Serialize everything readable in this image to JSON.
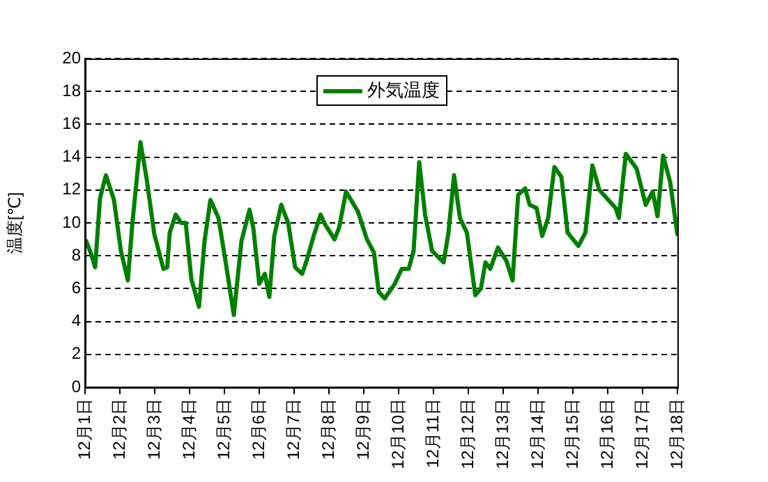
{
  "chart_data": {
    "type": "line",
    "ylabel": "温度[℃]",
    "legend": "top",
    "grid": "y",
    "marker": "none",
    "line_style": "solid",
    "xlim": [
      "--12-01",
      "--12-18"
    ],
    "ylim": [
      0,
      20
    ],
    "yticks": [
      0,
      2,
      4,
      6,
      8,
      10,
      12,
      14,
      16,
      18,
      20
    ],
    "xticks": [
      {
        "value": "--12-01",
        "label": "12月1日"
      },
      {
        "value": "--12-02",
        "label": "12月2日"
      },
      {
        "value": "--12-03",
        "label": "12月3日"
      },
      {
        "value": "--12-04",
        "label": "12月4日"
      },
      {
        "value": "--12-05",
        "label": "12月5日"
      },
      {
        "value": "--12-06",
        "label": "12月6日"
      },
      {
        "value": "--12-07",
        "label": "12月7日"
      },
      {
        "value": "--12-08",
        "label": "12月8日"
      },
      {
        "value": "--12-09",
        "label": "12月9日"
      },
      {
        "value": "--12-10",
        "label": "12月10日"
      },
      {
        "value": "--12-11",
        "label": "12月11日"
      },
      {
        "value": "--12-12",
        "label": "12月12日"
      },
      {
        "value": "--12-13",
        "label": "12月13日"
      },
      {
        "value": "--12-14",
        "label": "12月14日"
      },
      {
        "value": "--12-15",
        "label": "12月15日"
      },
      {
        "value": "--12-16",
        "label": "12月16日"
      },
      {
        "value": "--12-17",
        "label": "12月17日"
      },
      {
        "value": "--12-18",
        "label": "12月18日"
      }
    ],
    "series": [
      {
        "name": "外気温度",
        "color": "#008000",
        "x": [
          "--12-01T00:43",
          "--12-01T03:50",
          "--12-01T06:58",
          "--12-01T10:19",
          "--12-01T14:24",
          "--12-01T19:55",
          "--12-02T00:43",
          "--12-02T05:31",
          "--12-02T08:38",
          "--12-02T14:10",
          "--12-02T18:14",
          "--12-02T23:46",
          "--12-03T06:00",
          "--12-03T08:38",
          "--12-03T10:19",
          "--12-03T14:24",
          "--12-03T18:14",
          "--12-03T21:22",
          "--12-04T01:12",
          "--12-04T06:29",
          "--12-04T10:19",
          "--12-04T14:24",
          "--12-04T19:55",
          "--12-05T00:43",
          "--12-05T06:29",
          "--12-05T11:46",
          "--12-05T17:17",
          "--12-05T19:55",
          "--12-06T00:00",
          "--12-06T03:50",
          "--12-06T06:58",
          "--12-06T10:19",
          "--12-06T15:07",
          "--12-06T19:55",
          "--12-07T00:43",
          "--12-07T05:31",
          "--12-07T08:38",
          "--12-07T13:26",
          "--12-07T18:14",
          "--12-07T21:22",
          "--12-08T03:50",
          "--12-08T06:58",
          "--12-08T11:46",
          "--12-08T19:55",
          "--12-09T02:10",
          "--12-09T06:58",
          "--12-09T10:19",
          "--12-09T14:24",
          "--12-09T21:22",
          "--12-10T02:10",
          "--12-10T06:58",
          "--12-10T10:19",
          "--12-10T14:10",
          "--12-10T18:14",
          "--12-10T23:02",
          "--12-11T06:58",
          "--12-11T10:19",
          "--12-11T14:10",
          "--12-11T18:14",
          "--12-11T23:02",
          "--12-12T04:48",
          "--12-12T08:38",
          "--12-12T11:46",
          "--12-12T15:07",
          "--12-12T20:24",
          "--12-13T02:10",
          "--12-13T06:29",
          "--12-13T10:19",
          "--12-13T15:07",
          "--12-13T18:14",
          "--12-13T23:02",
          "--12-14T02:53",
          "--12-14T06:58",
          "--12-14T11:17",
          "--12-14T16:05",
          "--12-14T20:24",
          "--12-15T03:50",
          "--12-15T08:38",
          "--12-15T13:26",
          "--12-15T18:14",
          "--12-16T05:31",
          "--12-16T07:41",
          "--12-16T12:29",
          "--12-16T19:55",
          "--12-17T02:10",
          "--12-17T06:58",
          "--12-17T10:19",
          "--12-17T14:10",
          "--12-17T18:58",
          "--12-18T00:00"
        ],
        "values": [
          8.9,
          8.2,
          7.3,
          11.5,
          12.9,
          11.4,
          8.3,
          6.5,
          10.0,
          14.9,
          12.8,
          9.3,
          7.2,
          7.3,
          9.4,
          10.5,
          10.0,
          10.0,
          6.6,
          4.9,
          8.9,
          11.4,
          10.3,
          7.7,
          4.4,
          8.9,
          10.8,
          9.7,
          6.3,
          6.9,
          5.5,
          9.2,
          11.1,
          10.0,
          7.3,
          6.9,
          7.7,
          9.2,
          10.5,
          9.9,
          9.0,
          9.7,
          11.9,
          10.7,
          9.0,
          8.2,
          5.8,
          5.4,
          6.3,
          7.2,
          7.2,
          8.3,
          13.7,
          10.5,
          8.3,
          7.6,
          9.4,
          12.9,
          10.3,
          9.4,
          5.6,
          6.0,
          7.6,
          7.2,
          8.5,
          7.7,
          6.5,
          11.7,
          12.1,
          11.1,
          10.9,
          9.2,
          10.3,
          13.4,
          12.8,
          9.4,
          8.6,
          9.4,
          13.5,
          12.0,
          10.9,
          10.3,
          14.2,
          13.3,
          11.1,
          11.9,
          10.4,
          14.1,
          12.5,
          9.3
        ]
      }
    ]
  }
}
